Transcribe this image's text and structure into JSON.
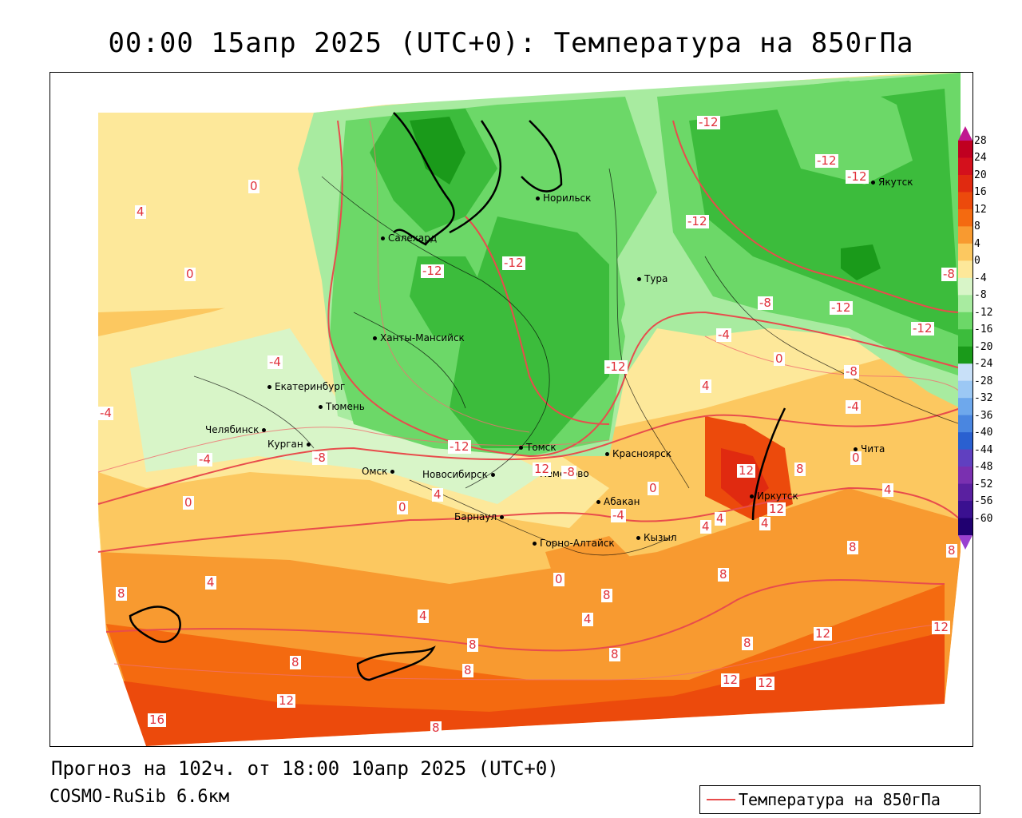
{
  "title": "00:00 15апр 2025 (UTC+0): Температура на 850гПа",
  "forecast_text": "Прогноз на 102ч. от 18:00 10апр 2025 (UTC+0)",
  "model_text": "COSMO-RuSib 6.6км",
  "legend_label": "Температура на 850гПа",
  "legend_line_color": "#e84c4c",
  "colorbar": {
    "labels": [
      "28",
      "24",
      "20",
      "16",
      "12",
      "8",
      "4",
      "0",
      "-4",
      "-8",
      "-12",
      "-16",
      "-20",
      "-24",
      "-28",
      "-32",
      "-36",
      "-40",
      "-44",
      "-48",
      "-52",
      "-56",
      "-60"
    ],
    "colors": [
      "#c00020",
      "#d4101c",
      "#e02a10",
      "#ec4a0c",
      "#f46a10",
      "#f89a30",
      "#fcc860",
      "#fde89a",
      "#d8f5c8",
      "#a8eba0",
      "#6cd868",
      "#3cbc3c",
      "#1a9a1a",
      "#c8e0f8",
      "#9cc8f4",
      "#6ea8ec",
      "#4a86e0",
      "#2a60d0",
      "#6040c0",
      "#7a30b0",
      "#5a20a0",
      "#3a1090",
      "#200070"
    ]
  },
  "cities": [
    {
      "name": "Салехард"
    },
    {
      "name": "Норильск"
    },
    {
      "name": "Тура"
    },
    {
      "name": "Якутск"
    },
    {
      "name": "Ханты-Мансийск"
    },
    {
      "name": "Екатеринбург"
    },
    {
      "name": "Тюмень"
    },
    {
      "name": "Челябинск"
    },
    {
      "name": "Курган"
    },
    {
      "name": "Омск"
    },
    {
      "name": "Новосибирск"
    },
    {
      "name": "Томск"
    },
    {
      "name": "Кемерово"
    },
    {
      "name": "Красноярск"
    },
    {
      "name": "Абакан"
    },
    {
      "name": "Барнаул"
    },
    {
      "name": "Горно-Алтайск"
    },
    {
      "name": "Кызыл"
    },
    {
      "name": "Иркутск"
    },
    {
      "name": "Чита"
    }
  ],
  "isotherm_labels": [
    "-12",
    "-12",
    "-12",
    "-12",
    "-12",
    "-12",
    "-12",
    "-12",
    "-12",
    "-12",
    "-8",
    "-8",
    "-8",
    "-8",
    "-8",
    "-4",
    "-4",
    "-4",
    "-4",
    "-4",
    "-4",
    "0",
    "0",
    "0",
    "0",
    "0",
    "0",
    "0",
    "0",
    "4",
    "4",
    "4",
    "4",
    "4",
    "4",
    "4",
    "4",
    "4",
    "4",
    "8",
    "8",
    "8",
    "8",
    "8",
    "8",
    "8",
    "8",
    "8",
    "8",
    "8",
    "8",
    "12",
    "12",
    "12",
    "12",
    "12",
    "12",
    "12",
    "12",
    "16"
  ]
}
